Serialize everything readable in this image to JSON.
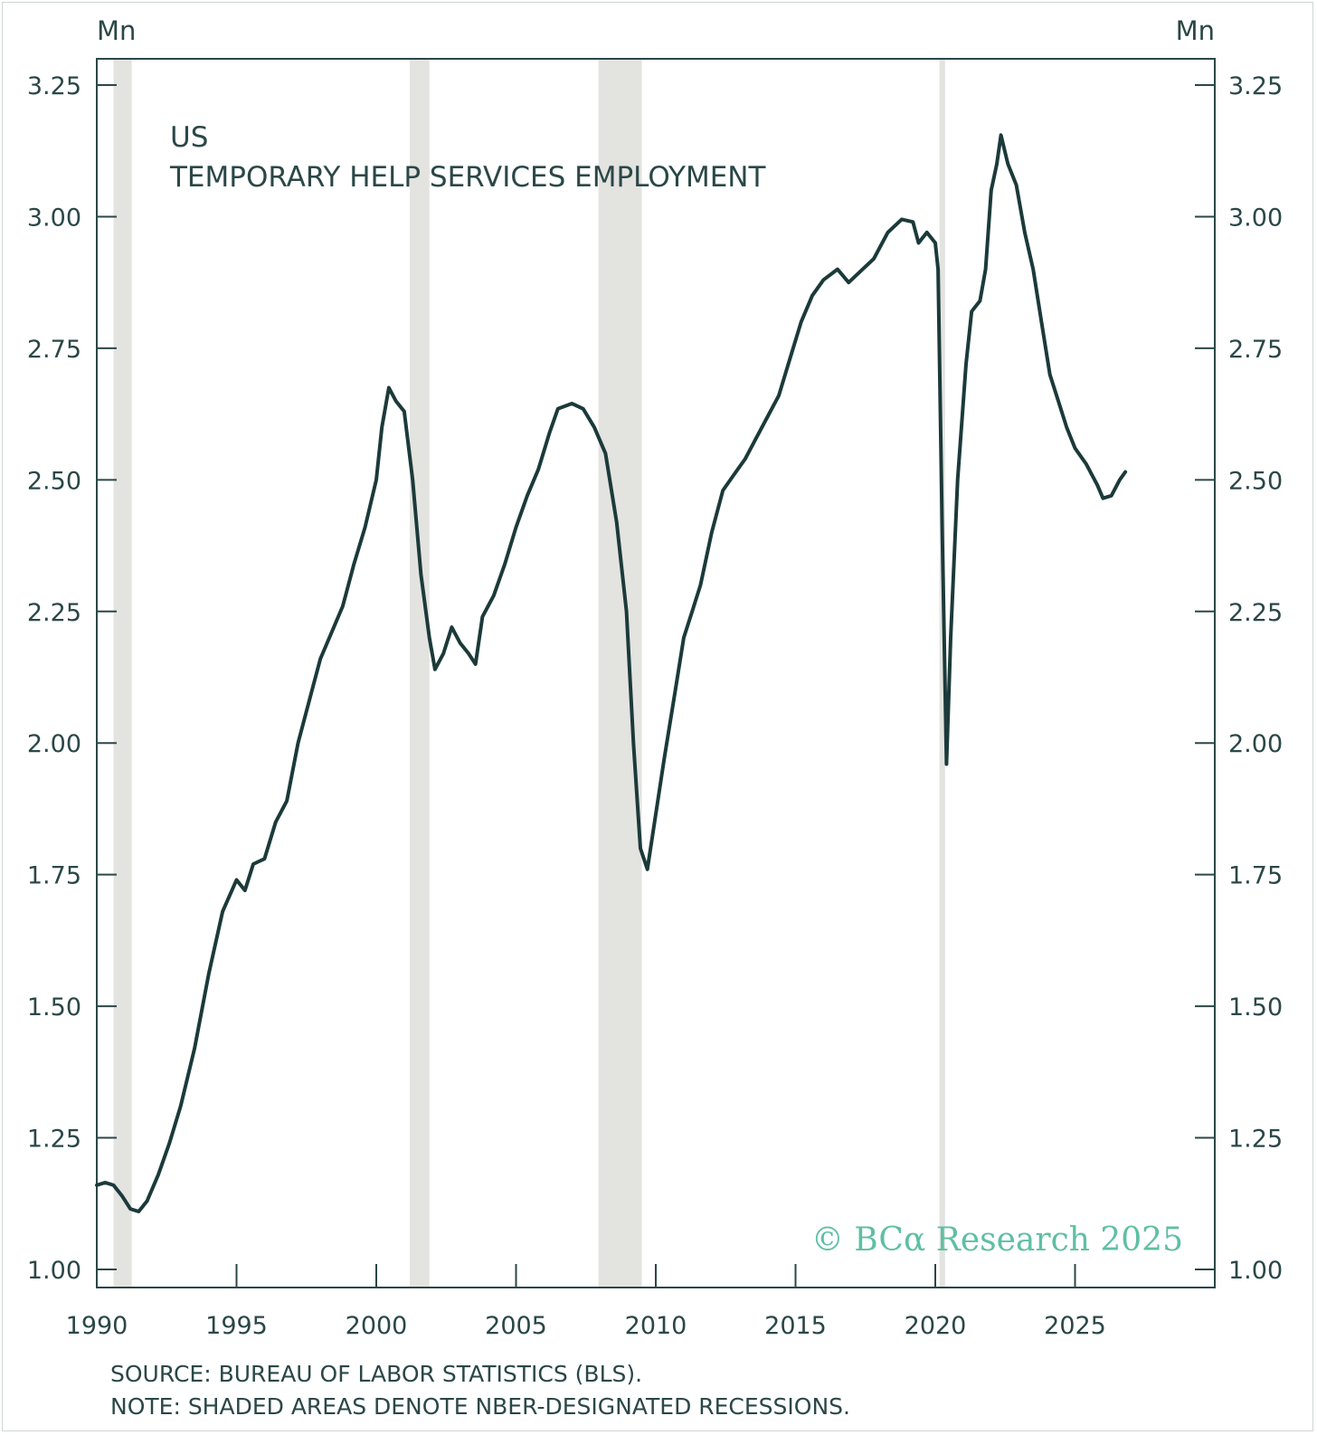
{
  "chart_data": {
    "type": "line",
    "title": "US",
    "subtitle": "TEMPORARY HELP SERVICES EMPLOYMENT",
    "y_unit_left": "Mn",
    "y_unit_right": "Mn",
    "xlim": [
      1990,
      2030
    ],
    "ylim": [
      1.0,
      3.25
    ],
    "y_ticks": [
      "1.00",
      "1.25",
      "1.50",
      "1.75",
      "2.00",
      "2.25",
      "2.50",
      "2.75",
      "3.00",
      "3.25"
    ],
    "x_ticks": [
      "1990",
      "1995",
      "2000",
      "2005",
      "2010",
      "2015",
      "2020",
      "2025"
    ],
    "recessions": [
      [
        1990.6,
        1991.25
      ],
      [
        2001.2,
        2001.9
      ],
      [
        2007.95,
        2009.5
      ],
      [
        2020.15,
        2020.35
      ]
    ],
    "series": [
      {
        "color": "#1c3a3a",
        "points": [
          [
            1990.0,
            1.16
          ],
          [
            1990.3,
            1.165
          ],
          [
            1990.6,
            1.16
          ],
          [
            1990.9,
            1.14
          ],
          [
            1991.2,
            1.115
          ],
          [
            1991.5,
            1.11
          ],
          [
            1991.8,
            1.13
          ],
          [
            1992.2,
            1.18
          ],
          [
            1992.6,
            1.24
          ],
          [
            1993.0,
            1.31
          ],
          [
            1993.5,
            1.42
          ],
          [
            1994.0,
            1.56
          ],
          [
            1994.5,
            1.68
          ],
          [
            1995.0,
            1.74
          ],
          [
            1995.3,
            1.72
          ],
          [
            1995.6,
            1.77
          ],
          [
            1996.0,
            1.78
          ],
          [
            1996.4,
            1.85
          ],
          [
            1996.8,
            1.89
          ],
          [
            1997.2,
            2.0
          ],
          [
            1997.6,
            2.08
          ],
          [
            1998.0,
            2.16
          ],
          [
            1998.4,
            2.21
          ],
          [
            1998.8,
            2.26
          ],
          [
            1999.2,
            2.34
          ],
          [
            1999.6,
            2.41
          ],
          [
            2000.0,
            2.5
          ],
          [
            2000.2,
            2.6
          ],
          [
            2000.45,
            2.675
          ],
          [
            2000.7,
            2.65
          ],
          [
            2001.0,
            2.63
          ],
          [
            2001.3,
            2.5
          ],
          [
            2001.6,
            2.32
          ],
          [
            2001.9,
            2.2
          ],
          [
            2002.1,
            2.14
          ],
          [
            2002.4,
            2.17
          ],
          [
            2002.7,
            2.22
          ],
          [
            2003.0,
            2.19
          ],
          [
            2003.3,
            2.17
          ],
          [
            2003.55,
            2.15
          ],
          [
            2003.8,
            2.24
          ],
          [
            2004.2,
            2.28
          ],
          [
            2004.6,
            2.34
          ],
          [
            2005.0,
            2.41
          ],
          [
            2005.4,
            2.47
          ],
          [
            2005.8,
            2.52
          ],
          [
            2006.2,
            2.59
          ],
          [
            2006.5,
            2.635
          ],
          [
            2007.0,
            2.645
          ],
          [
            2007.4,
            2.635
          ],
          [
            2007.8,
            2.6
          ],
          [
            2008.2,
            2.55
          ],
          [
            2008.6,
            2.42
          ],
          [
            2008.95,
            2.25
          ],
          [
            2009.2,
            2.0
          ],
          [
            2009.45,
            1.8
          ],
          [
            2009.7,
            1.76
          ],
          [
            2009.9,
            1.83
          ],
          [
            2010.3,
            1.97
          ],
          [
            2010.7,
            2.1
          ],
          [
            2011.0,
            2.2
          ],
          [
            2011.3,
            2.25
          ],
          [
            2011.6,
            2.3
          ],
          [
            2012.0,
            2.4
          ],
          [
            2012.4,
            2.48
          ],
          [
            2012.8,
            2.51
          ],
          [
            2013.2,
            2.54
          ],
          [
            2013.6,
            2.58
          ],
          [
            2014.0,
            2.62
          ],
          [
            2014.4,
            2.66
          ],
          [
            2014.8,
            2.73
          ],
          [
            2015.2,
            2.8
          ],
          [
            2015.6,
            2.85
          ],
          [
            2016.0,
            2.88
          ],
          [
            2016.5,
            2.9
          ],
          [
            2016.9,
            2.875
          ],
          [
            2017.4,
            2.9
          ],
          [
            2017.8,
            2.92
          ],
          [
            2018.3,
            2.97
          ],
          [
            2018.8,
            2.995
          ],
          [
            2019.2,
            2.99
          ],
          [
            2019.4,
            2.95
          ],
          [
            2019.7,
            2.97
          ],
          [
            2020.0,
            2.95
          ],
          [
            2020.1,
            2.9
          ],
          [
            2020.25,
            2.4
          ],
          [
            2020.4,
            1.96
          ],
          [
            2020.55,
            2.2
          ],
          [
            2020.8,
            2.5
          ],
          [
            2021.1,
            2.72
          ],
          [
            2021.3,
            2.82
          ],
          [
            2021.6,
            2.84
          ],
          [
            2021.8,
            2.9
          ],
          [
            2022.0,
            3.05
          ],
          [
            2022.2,
            3.1
          ],
          [
            2022.35,
            3.155
          ],
          [
            2022.6,
            3.1
          ],
          [
            2022.9,
            3.06
          ],
          [
            2023.2,
            2.97
          ],
          [
            2023.5,
            2.9
          ],
          [
            2023.8,
            2.8
          ],
          [
            2024.1,
            2.7
          ],
          [
            2024.4,
            2.65
          ],
          [
            2024.7,
            2.6
          ],
          [
            2025.0,
            2.56
          ],
          [
            2025.4,
            2.53
          ],
          [
            2025.8,
            2.49
          ],
          [
            2026.0,
            2.465
          ],
          [
            2026.3,
            2.47
          ],
          [
            2026.6,
            2.5
          ],
          [
            2026.8,
            2.515
          ]
        ]
      }
    ]
  },
  "source_text": "SOURCE: BUREAU OF LABOR STATISTICS (BLS).",
  "note_text": "NOTE: SHADED AREAS DENOTE NBER-DESIGNATED RECESSIONS.",
  "brand_text": "© BCα Research 2025"
}
